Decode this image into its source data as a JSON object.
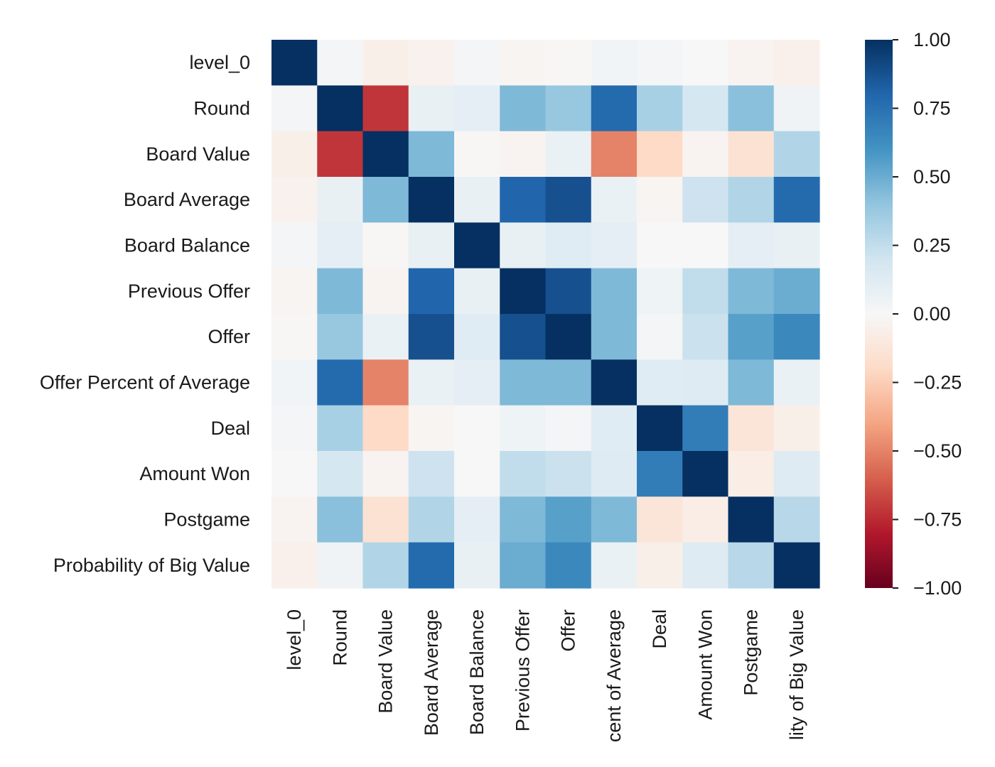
{
  "chart_data": {
    "type": "heatmap",
    "title": "",
    "xlabel": "",
    "ylabel": "",
    "row_labels": [
      "level_0",
      "Round",
      "Board Value",
      "Board Average",
      "Board Balance",
      "Previous Offer",
      "Offer",
      "Offer Percent of Average",
      "Deal",
      "Amount Won",
      "Postgame",
      "Probability of Big Value"
    ],
    "col_labels_visible": [
      "level_0",
      "Round",
      "Board Value",
      "Board Average",
      "Board Balance",
      "Previous Offer",
      "Offer",
      "cent of Average",
      "Deal",
      "Amount Won",
      "Postgame",
      "lity of Big Value"
    ],
    "values": [
      [
        1.0,
        0.02,
        -0.06,
        -0.04,
        0.02,
        -0.02,
        -0.01,
        0.03,
        0.02,
        0.0,
        -0.03,
        -0.05
      ],
      [
        0.02,
        1.0,
        -0.72,
        0.08,
        0.1,
        0.45,
        0.38,
        0.78,
        0.33,
        0.18,
        0.42,
        0.04
      ],
      [
        -0.06,
        -0.72,
        1.0,
        0.45,
        -0.01,
        -0.03,
        0.07,
        -0.5,
        -0.2,
        -0.03,
        -0.15,
        0.3
      ],
      [
        -0.04,
        0.08,
        0.45,
        1.0,
        0.08,
        0.8,
        0.88,
        0.07,
        -0.02,
        0.21,
        0.3,
        0.78
      ],
      [
        0.02,
        0.1,
        -0.01,
        0.08,
        1.0,
        0.08,
        0.12,
        0.1,
        0.0,
        0.0,
        0.1,
        0.08
      ],
      [
        -0.02,
        0.45,
        -0.03,
        0.8,
        0.08,
        1.0,
        0.88,
        0.45,
        0.05,
        0.25,
        0.45,
        0.5
      ],
      [
        -0.01,
        0.38,
        0.07,
        0.88,
        0.12,
        0.88,
        1.0,
        0.45,
        0.02,
        0.22,
        0.55,
        0.65
      ],
      [
        0.03,
        0.78,
        -0.5,
        0.07,
        0.1,
        0.45,
        0.45,
        1.0,
        0.12,
        0.13,
        0.45,
        0.07
      ],
      [
        0.02,
        0.33,
        -0.2,
        -0.02,
        0.0,
        0.05,
        0.02,
        0.12,
        1.0,
        0.7,
        -0.13,
        -0.06
      ],
      [
        0.0,
        0.18,
        -0.03,
        0.21,
        0.0,
        0.25,
        0.22,
        0.13,
        0.7,
        1.0,
        -0.07,
        0.13
      ],
      [
        -0.03,
        0.42,
        -0.15,
        0.3,
        0.1,
        0.45,
        0.55,
        0.45,
        -0.13,
        -0.07,
        1.0,
        0.28
      ],
      [
        -0.05,
        0.04,
        0.3,
        0.78,
        0.08,
        0.5,
        0.65,
        0.07,
        -0.06,
        0.13,
        0.28,
        1.0
      ]
    ],
    "colormap": "RdBu",
    "vmin": -1.0,
    "vmax": 1.0,
    "colorbar": {
      "ticks": [
        1.0,
        0.75,
        0.5,
        0.25,
        0.0,
        -0.25,
        -0.5,
        -0.75,
        -1.0
      ],
      "tick_labels": [
        "1.00",
        "0.75",
        "0.50",
        "0.25",
        "0.00",
        "−0.25",
        "−0.50",
        "−0.75",
        "−1.00"
      ],
      "placement": "right"
    },
    "grid": false
  }
}
